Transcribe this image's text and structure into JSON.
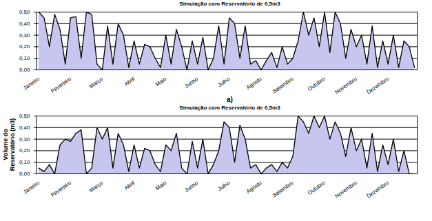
{
  "chart_data": [
    {
      "type": "area",
      "title": "Simulação com Reservatório de 0,5m3",
      "annotation": "a)",
      "color": "#c6c6ee",
      "grid": true,
      "categories": [
        "Janeiro",
        null,
        null,
        null,
        null,
        null,
        "Fevereiro",
        null,
        null,
        null,
        null,
        null,
        "Março",
        null,
        null,
        null,
        null,
        null,
        "Abril",
        null,
        null,
        null,
        null,
        null,
        "Maio",
        null,
        null,
        null,
        null,
        null,
        "Junho",
        null,
        null,
        null,
        null,
        null,
        "Julho",
        null,
        null,
        null,
        null,
        null,
        "Agosto",
        null,
        null,
        null,
        null,
        null,
        "Setembro",
        null,
        null,
        null,
        null,
        null,
        "Outubro",
        null,
        null,
        null,
        null,
        null,
        "Novembro",
        null,
        null,
        null,
        null,
        null,
        "Dezembro",
        null,
        null,
        null,
        null,
        null
      ],
      "values": [
        0.5,
        0.45,
        0.2,
        0.48,
        0.35,
        0.05,
        0.45,
        0.46,
        0.1,
        0.5,
        0.48,
        0.05,
        0.0,
        0.38,
        0.05,
        0.4,
        0.3,
        0.02,
        0.25,
        0.05,
        0.22,
        0.2,
        0.1,
        0.02,
        0.3,
        0.05,
        0.35,
        0.2,
        0.0,
        0.25,
        0.05,
        0.28,
        0.0,
        0.1,
        0.38,
        0.05,
        0.45,
        0.4,
        0.1,
        0.38,
        0.05,
        0.08,
        0.0,
        0.08,
        0.15,
        0.02,
        0.2,
        0.05,
        0.1,
        0.25,
        0.5,
        0.3,
        0.45,
        0.2,
        0.5,
        0.15,
        0.5,
        0.4,
        0.1,
        0.35,
        0.2,
        0.3,
        0.05,
        0.38,
        0.02,
        0.25,
        0.05,
        0.3,
        0.02,
        0.25,
        0.2,
        0.02
      ],
      "ylim": [
        0,
        0.5
      ],
      "yticks": [
        {
          "value": 0,
          "label": "0,00"
        },
        {
          "value": 0.1,
          "label": "0,10"
        },
        {
          "value": 0.2,
          "label": "0,20"
        },
        {
          "value": 0.3,
          "label": "0,30"
        },
        {
          "value": 0.4,
          "label": "0,40"
        },
        {
          "value": 0.5,
          "label": "0,50"
        }
      ]
    },
    {
      "type": "area",
      "title": "Simulação com Reservatório de 0,5m3",
      "y_label": "Volume do Reservatório (m3)",
      "color": "#c6c6ee",
      "grid": true,
      "categories": [
        "Janeiro",
        null,
        null,
        null,
        null,
        null,
        "Fevereiro",
        null,
        null,
        null,
        null,
        null,
        "Março",
        null,
        null,
        null,
        null,
        null,
        "Abril",
        null,
        null,
        null,
        null,
        null,
        "Maio",
        null,
        null,
        null,
        null,
        null,
        "Junho",
        null,
        null,
        null,
        null,
        null,
        "Julho",
        null,
        null,
        null,
        null,
        null,
        "Agosto",
        null,
        null,
        null,
        null,
        null,
        "Setembro",
        null,
        null,
        null,
        null,
        null,
        "Outubro",
        null,
        null,
        null,
        null,
        null,
        "Novembro",
        null,
        null,
        null,
        null,
        null,
        "Dezembro",
        null,
        null,
        null,
        null,
        null
      ],
      "values": [
        0.05,
        0.02,
        0.08,
        0.0,
        0.25,
        0.3,
        0.28,
        0.35,
        0.38,
        0.0,
        0.05,
        0.4,
        0.3,
        0.4,
        0.05,
        0.35,
        0.25,
        0.02,
        0.25,
        0.05,
        0.22,
        0.2,
        0.08,
        0.02,
        0.25,
        0.2,
        0.35,
        0.05,
        0.0,
        0.28,
        0.05,
        0.3,
        0.0,
        0.08,
        0.2,
        0.45,
        0.4,
        0.1,
        0.42,
        0.3,
        0.05,
        0.08,
        0.0,
        0.05,
        0.08,
        0.02,
        0.1,
        0.05,
        0.15,
        0.5,
        0.45,
        0.35,
        0.5,
        0.4,
        0.5,
        0.3,
        0.45,
        0.35,
        0.15,
        0.4,
        0.2,
        0.3,
        0.05,
        0.35,
        0.02,
        0.25,
        0.08,
        0.3,
        0.02,
        0.2,
        0.0,
        0.0
      ],
      "ylim": [
        0,
        0.5
      ],
      "yticks": [
        {
          "value": 0,
          "label": "0,00"
        },
        {
          "value": 0.1,
          "label": "0,10"
        },
        {
          "value": 0.2,
          "label": "0,20"
        },
        {
          "value": 0.3,
          "label": "0,30"
        },
        {
          "value": 0.4,
          "label": "0,40"
        },
        {
          "value": 0.5,
          "label": "0,50"
        }
      ]
    }
  ]
}
